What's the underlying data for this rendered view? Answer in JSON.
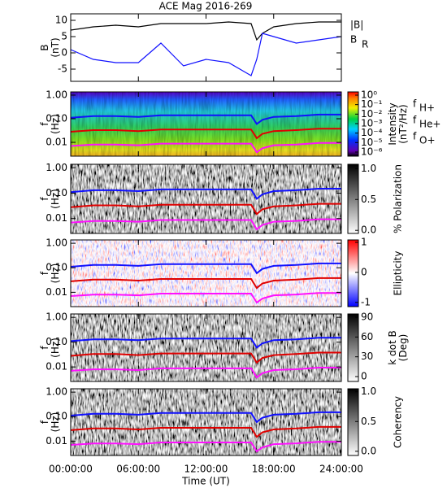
{
  "chart_data": [
    {
      "type": "line",
      "title": "ACE Mag 2016-269",
      "ylabel": [
        "B",
        "(nT)"
      ],
      "xlim": [
        0,
        24
      ],
      "xticks": [
        0,
        6,
        12,
        18,
        24
      ],
      "ylim": [
        -8.75,
        12
      ],
      "yticks": [
        -5,
        0,
        5,
        10
      ],
      "x": [
        0,
        2,
        4,
        6,
        8,
        10,
        12,
        14,
        16,
        16.5,
        17,
        18,
        20,
        22,
        24
      ],
      "series": [
        {
          "name": "|B|",
          "color": "#000000",
          "values": [
            7,
            8,
            8.5,
            8,
            9,
            9,
            9,
            9.5,
            9,
            4,
            6,
            8,
            9,
            9.5,
            9.5
          ]
        },
        {
          "name": "B",
          "subscript": "R",
          "color": "#1010ff",
          "values": [
            1,
            -2,
            -3,
            -3,
            3,
            -4,
            -2,
            -3,
            -7,
            -2,
            6,
            5,
            3,
            4,
            5
          ]
        }
      ]
    },
    {
      "type": "spectrogram",
      "ylabel": [
        "f",
        "(Hz)"
      ],
      "ylog": true,
      "colormap": "rainbow",
      "xlim": [
        0,
        24
      ],
      "xticks": [
        0,
        6,
        12,
        18,
        24
      ],
      "ylim": [
        0.0026,
        1.37
      ],
      "yticks": [
        {
          "value": 1,
          "label": "1.00"
        },
        {
          "value": 0.1,
          "label": "0.10"
        },
        {
          "value": 0.01,
          "label": "0.01"
        }
      ],
      "zlabel": [
        "Intensity",
        "(nT²/Hz)"
      ],
      "zlog": true,
      "zlim": [
        3.7e-07,
        2.2
      ],
      "zticks": [
        {
          "value": 1,
          "label": "10⁰"
        },
        {
          "value": 0.1,
          "label": "10⁻¹"
        },
        {
          "value": 0.01,
          "label": "10⁻²"
        },
        {
          "value": 0.001,
          "label": "10⁻³"
        },
        {
          "value": 0.0001,
          "label": "10⁻⁴"
        },
        {
          "value": 1e-05,
          "label": "10⁻⁵"
        },
        {
          "value": 1e-06,
          "label": "10⁻⁶"
        }
      ],
      "x": [
        0,
        2,
        4,
        6,
        8,
        10,
        12,
        14,
        16,
        16.5,
        17,
        18,
        20,
        22,
        24
      ],
      "series": [
        {
          "name": "f",
          "subscript": "H+",
          "color": "#1010ff",
          "label_color": "#3030b0",
          "values": [
            0.11,
            0.13,
            0.13,
            0.12,
            0.14,
            0.14,
            0.14,
            0.14,
            0.14,
            0.06,
            0.09,
            0.12,
            0.13,
            0.15,
            0.15
          ]
        },
        {
          "name": "f",
          "subscript": "He+",
          "color": "#e00000",
          "label_color": "#c00000",
          "values": [
            0.028,
            0.033,
            0.033,
            0.03,
            0.035,
            0.035,
            0.035,
            0.035,
            0.035,
            0.015,
            0.023,
            0.03,
            0.033,
            0.038,
            0.038
          ]
        },
        {
          "name": "f",
          "subscript": "O+",
          "color": "#ff10ff",
          "label_color": "#e020e0",
          "values": [
            0.007,
            0.008,
            0.008,
            0.0075,
            0.0088,
            0.0088,
            0.0088,
            0.0088,
            0.0088,
            0.0038,
            0.0056,
            0.0075,
            0.0081,
            0.0094,
            0.0094
          ]
        }
      ]
    },
    {
      "type": "spectrogram",
      "ylabel": [
        "f",
        "(Hz)"
      ],
      "ylog": true,
      "colormap": "gray",
      "xlim": [
        0,
        24
      ],
      "xticks": [
        0,
        6,
        12,
        18,
        24
      ],
      "ylim": [
        0.0026,
        1.37
      ],
      "yticks": [
        {
          "value": 1,
          "label": "1.00"
        },
        {
          "value": 0.1,
          "label": "0.10"
        },
        {
          "value": 0.01,
          "label": "0.01"
        }
      ],
      "zlabel": [
        "% Polarization"
      ],
      "zlim": [
        -0.05,
        1.07
      ],
      "zticks": [
        {
          "value": 1,
          "label": "1.0"
        },
        0.5,
        {
          "value": 0,
          "label": "0.0"
        }
      ],
      "x": [
        0,
        2,
        4,
        6,
        8,
        10,
        12,
        14,
        16,
        16.5,
        17,
        18,
        20,
        22,
        24
      ],
      "series": [
        {
          "color": "#1010ff",
          "values": [
            0.11,
            0.13,
            0.13,
            0.12,
            0.14,
            0.14,
            0.14,
            0.14,
            0.14,
            0.06,
            0.09,
            0.12,
            0.13,
            0.15,
            0.15
          ]
        },
        {
          "color": "#e00000",
          "values": [
            0.028,
            0.033,
            0.033,
            0.03,
            0.035,
            0.035,
            0.035,
            0.035,
            0.035,
            0.015,
            0.023,
            0.03,
            0.033,
            0.038,
            0.038
          ]
        },
        {
          "color": "#ff10ff",
          "values": [
            0.007,
            0.008,
            0.008,
            0.0075,
            0.0088,
            0.0088,
            0.0088,
            0.0088,
            0.0088,
            0.0038,
            0.0056,
            0.0075,
            0.0081,
            0.0094,
            0.0094
          ]
        }
      ]
    },
    {
      "type": "spectrogram",
      "ylabel": [
        "f",
        "(Hz)"
      ],
      "ylog": true,
      "colormap": "bwr",
      "xlim": [
        0,
        24
      ],
      "xticks": [
        0,
        6,
        12,
        18,
        24
      ],
      "ylim": [
        0.0026,
        1.37
      ],
      "yticks": [
        {
          "value": 1,
          "label": "1.00"
        },
        {
          "value": 0.1,
          "label": "0.10"
        },
        {
          "value": 0.01,
          "label": "0.01"
        }
      ],
      "zlabel": [
        "Ellipticity"
      ],
      "zlim": [
        -1.14,
        1.08
      ],
      "zticks": [
        1,
        0,
        -1
      ],
      "x": [
        0,
        2,
        4,
        6,
        8,
        10,
        12,
        14,
        16,
        16.5,
        17,
        18,
        20,
        22,
        24
      ],
      "series": [
        {
          "color": "#1010ff",
          "values": [
            0.11,
            0.13,
            0.13,
            0.12,
            0.14,
            0.14,
            0.14,
            0.14,
            0.14,
            0.06,
            0.09,
            0.12,
            0.13,
            0.15,
            0.15
          ]
        },
        {
          "color": "#e00000",
          "values": [
            0.028,
            0.033,
            0.033,
            0.03,
            0.035,
            0.035,
            0.035,
            0.035,
            0.035,
            0.015,
            0.023,
            0.03,
            0.033,
            0.038,
            0.038
          ]
        },
        {
          "color": "#ff10ff",
          "values": [
            0.007,
            0.008,
            0.008,
            0.0075,
            0.0088,
            0.0088,
            0.0088,
            0.0088,
            0.0088,
            0.0038,
            0.0056,
            0.0075,
            0.0081,
            0.0094,
            0.0094
          ]
        }
      ]
    },
    {
      "type": "spectrogram",
      "ylabel": [
        "f",
        "(Hz)"
      ],
      "ylog": true,
      "colormap": "gray",
      "xlim": [
        0,
        24
      ],
      "xticks": [
        0,
        6,
        12,
        18,
        24
      ],
      "ylim": [
        0.0026,
        1.37
      ],
      "yticks": [
        {
          "value": 1,
          "label": "1.00"
        },
        {
          "value": 0.1,
          "label": "0.10"
        },
        {
          "value": 0.01,
          "label": "0.01"
        }
      ],
      "zlabel": [
        "k dot B",
        "(Deg)"
      ],
      "zlim": [
        -7.4,
        95
      ],
      "zticks": [
        90,
        60,
        30,
        0
      ],
      "x": [
        0,
        2,
        4,
        6,
        8,
        10,
        12,
        14,
        16,
        16.5,
        17,
        18,
        20,
        22,
        24
      ],
      "series": [
        {
          "color": "#1010ff",
          "values": [
            0.11,
            0.13,
            0.13,
            0.12,
            0.14,
            0.14,
            0.14,
            0.14,
            0.14,
            0.06,
            0.09,
            0.12,
            0.13,
            0.15,
            0.15
          ]
        },
        {
          "color": "#e00000",
          "values": [
            0.028,
            0.033,
            0.033,
            0.03,
            0.035,
            0.035,
            0.035,
            0.035,
            0.035,
            0.015,
            0.023,
            0.03,
            0.033,
            0.038,
            0.038
          ]
        },
        {
          "color": "#ff10ff",
          "values": [
            0.007,
            0.008,
            0.008,
            0.0075,
            0.0088,
            0.0088,
            0.0088,
            0.0088,
            0.0088,
            0.0038,
            0.0056,
            0.0075,
            0.0081,
            0.0094,
            0.0094
          ]
        }
      ]
    },
    {
      "type": "spectrogram",
      "ylabel": [
        "f",
        "(Hz)"
      ],
      "ylog": true,
      "colormap": "gray",
      "xlim": [
        0,
        24
      ],
      "xlabel": "Time (UT)",
      "xticks": [
        {
          "value": 0,
          "label": "00:00:00"
        },
        {
          "value": 6,
          "label": "06:00:00"
        },
        {
          "value": 12,
          "label": "12:00:00"
        },
        {
          "value": 18,
          "label": "18:00:00"
        },
        {
          "value": 24,
          "label": "24:00:00"
        }
      ],
      "ylim": [
        0.0026,
        1.37
      ],
      "yticks": [
        {
          "value": 1,
          "label": "1.00"
        },
        {
          "value": 0.1,
          "label": "0.10"
        },
        {
          "value": 0.01,
          "label": "0.01"
        }
      ],
      "zlabel": [
        "Coherency"
      ],
      "zlim": [
        -0.07,
        1.05
      ],
      "zticks": [
        {
          "value": 1,
          "label": "1.0"
        },
        0.5,
        {
          "value": 0,
          "label": "0.0"
        }
      ],
      "x": [
        0,
        2,
        4,
        6,
        8,
        10,
        12,
        14,
        16,
        16.5,
        17,
        18,
        20,
        22,
        24
      ],
      "series": [
        {
          "color": "#1010ff",
          "values": [
            0.11,
            0.13,
            0.13,
            0.12,
            0.14,
            0.14,
            0.14,
            0.14,
            0.14,
            0.06,
            0.09,
            0.12,
            0.13,
            0.15,
            0.15
          ]
        },
        {
          "color": "#e00000",
          "values": [
            0.028,
            0.033,
            0.033,
            0.03,
            0.035,
            0.035,
            0.035,
            0.035,
            0.035,
            0.015,
            0.023,
            0.03,
            0.033,
            0.038,
            0.038
          ]
        },
        {
          "color": "#ff10ff",
          "values": [
            0.007,
            0.008,
            0.008,
            0.0075,
            0.0088,
            0.0088,
            0.0088,
            0.0088,
            0.0088,
            0.0038,
            0.0056,
            0.0075,
            0.0081,
            0.0094,
            0.0094
          ]
        }
      ]
    }
  ]
}
